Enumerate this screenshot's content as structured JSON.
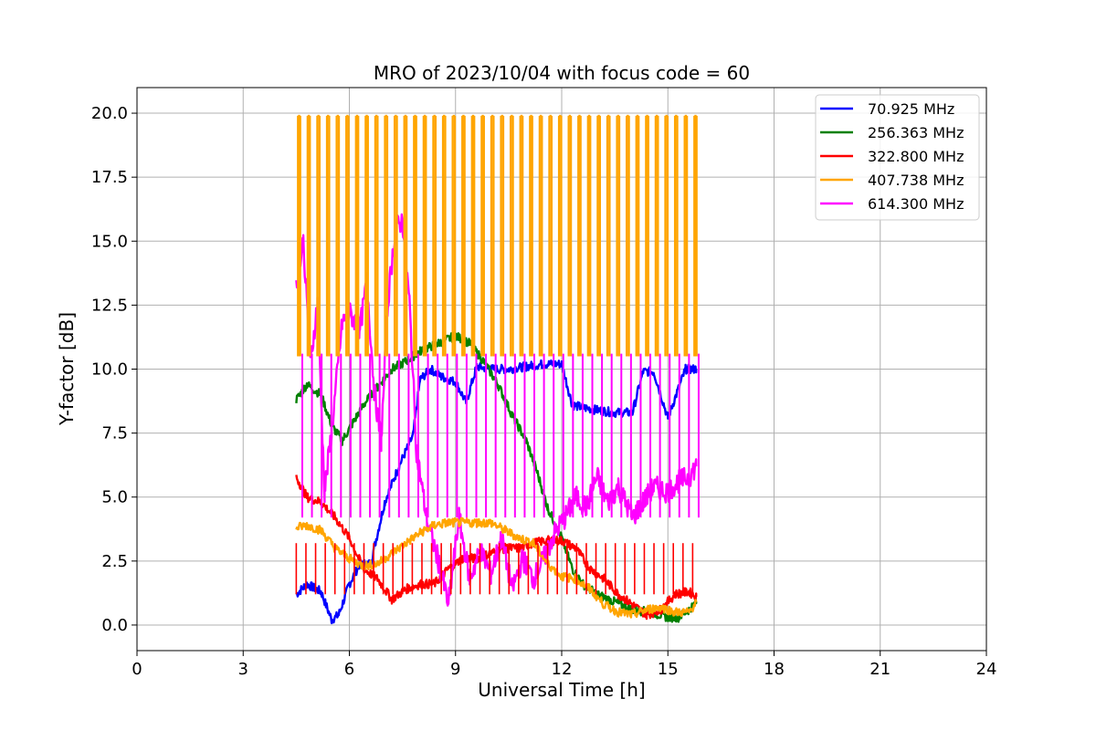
{
  "chart_data": {
    "type": "line",
    "title": "MRO of 2023/10/04 with focus code = 60",
    "xlabel": "Universal Time [h]",
    "ylabel": "Y-factor [dB]",
    "xlim": [
      0,
      24
    ],
    "ylim": [
      -1,
      21
    ],
    "x_ticks": [
      0,
      3,
      6,
      9,
      12,
      15,
      18,
      21,
      24
    ],
    "x_tick_labels": [
      "0",
      "3",
      "6",
      "9",
      "12",
      "15",
      "18",
      "21",
      "24"
    ],
    "y_ticks": [
      0,
      2.5,
      5,
      7.5,
      10,
      12.5,
      15,
      17.5,
      20
    ],
    "y_tick_labels": [
      "0.0",
      "2.5",
      "5.0",
      "7.5",
      "10.0",
      "12.5",
      "15.0",
      "17.5",
      "20.0"
    ],
    "grid": true,
    "legend_position": "top-right",
    "series": [
      {
        "name": "70.925 MHz",
        "color": "#0000ff",
        "x": [
          4.5,
          4.8,
          5.2,
          5.5,
          5.7,
          6.0,
          6.3,
          6.6,
          7.0,
          7.4,
          7.8,
          8.0,
          8.3,
          8.6,
          9.0,
          9.3,
          9.6,
          10.0,
          10.5,
          11.0,
          11.5,
          12.0,
          12.3,
          12.6,
          13.0,
          13.5,
          14.0,
          14.3,
          14.6,
          15.0,
          15.5,
          15.8
        ],
        "y": [
          1.2,
          1.6,
          1.3,
          0.2,
          0.4,
          1.6,
          2.4,
          2.4,
          4.8,
          6.2,
          7.4,
          9.6,
          10.0,
          9.7,
          9.5,
          8.7,
          10.1,
          10.0,
          10.0,
          10.1,
          10.2,
          10.2,
          8.6,
          8.5,
          8.4,
          8.3,
          8.3,
          9.9,
          9.9,
          8.1,
          10.0,
          10.0
        ]
      },
      {
        "name": "256.363 MHz",
        "color": "#008000",
        "x": [
          4.5,
          4.8,
          5.2,
          5.5,
          5.8,
          6.1,
          6.4,
          6.8,
          7.2,
          7.6,
          8.0,
          8.5,
          9.0,
          9.4,
          9.8,
          10.2,
          10.6,
          11.0,
          11.3,
          11.6,
          12.0,
          12.3,
          12.6,
          13.0,
          13.5,
          14.0,
          14.5,
          15.0,
          15.3,
          15.6,
          15.8
        ],
        "y": [
          8.8,
          9.4,
          9.0,
          7.8,
          7.2,
          7.9,
          8.6,
          9.3,
          10.0,
          10.3,
          10.7,
          11.0,
          11.3,
          11.0,
          10.3,
          9.4,
          8.2,
          7.2,
          6.0,
          4.6,
          3.4,
          2.2,
          1.6,
          1.2,
          0.9,
          0.6,
          0.5,
          0.3,
          0.3,
          0.6,
          0.9
        ]
      },
      {
        "name": "322.800 MHz",
        "color": "#ff0000",
        "x": [
          4.5,
          4.8,
          5.2,
          5.6,
          6.0,
          6.4,
          6.8,
          7.2,
          7.6,
          8.0,
          8.4,
          8.8,
          9.2,
          9.6,
          10.0,
          10.4,
          10.8,
          11.2,
          11.6,
          12.0,
          12.4,
          12.8,
          13.2,
          13.6,
          14.0,
          14.4,
          14.8,
          15.2,
          15.6,
          15.8
        ],
        "y": [
          5.8,
          5.0,
          4.8,
          4.2,
          3.4,
          2.2,
          1.8,
          1.0,
          1.4,
          1.6,
          1.6,
          2.2,
          2.6,
          2.6,
          2.8,
          3.0,
          3.0,
          3.2,
          3.3,
          3.3,
          3.0,
          2.2,
          1.8,
          1.2,
          0.8,
          0.4,
          0.6,
          1.2,
          1.3,
          1.1
        ]
      },
      {
        "name": "407.738 MHz",
        "color": "#ffa500",
        "x": [
          4.5,
          4.8,
          5.2,
          5.6,
          6.0,
          6.4,
          6.8,
          7.2,
          7.6,
          8.0,
          8.4,
          8.8,
          9.2,
          9.6,
          10.0,
          10.4,
          10.8,
          11.2,
          11.6,
          12.0,
          12.4,
          12.8,
          13.2,
          13.6,
          14.0,
          14.4,
          14.8,
          15.2,
          15.6,
          15.8
        ],
        "y": [
          3.8,
          3.9,
          3.7,
          3.0,
          2.6,
          2.3,
          2.4,
          2.8,
          3.2,
          3.6,
          3.9,
          4.0,
          4.0,
          4.0,
          4.0,
          3.7,
          3.4,
          3.2,
          2.4,
          1.9,
          1.8,
          1.4,
          0.8,
          0.5,
          0.4,
          0.6,
          0.7,
          0.5,
          0.5,
          0.9
        ],
        "spike_peak": 19.9,
        "spike_floor": 10.5,
        "spike_count": 42,
        "spike_x_range": [
          4.55,
          15.75
        ]
      },
      {
        "name": "614.300 MHz",
        "color": "#ff00ff",
        "x": [
          4.5,
          4.7,
          4.9,
          5.1,
          5.3,
          5.5,
          5.8,
          6.0,
          6.3,
          6.5,
          6.7,
          6.9,
          7.1,
          7.3,
          7.5,
          7.7,
          7.9,
          8.2,
          8.5,
          8.8,
          9.1,
          9.4,
          9.7,
          10.0,
          10.3,
          10.6,
          10.9,
          11.2,
          11.5,
          11.8,
          12.1,
          12.4,
          12.7,
          13.0,
          13.3,
          13.6,
          14.0,
          14.3,
          14.6,
          15.0,
          15.3,
          15.6,
          15.8
        ],
        "y": [
          13.2,
          15.0,
          10.2,
          12.6,
          5.2,
          7.6,
          11.8,
          12.2,
          11.6,
          13.4,
          9.2,
          7.2,
          12.8,
          15.5,
          15.8,
          12.6,
          6.8,
          4.0,
          2.6,
          0.8,
          4.2,
          1.8,
          2.9,
          2.0,
          3.4,
          1.4,
          2.6,
          1.8,
          2.6,
          3.6,
          4.2,
          5.0,
          4.6,
          5.8,
          4.8,
          5.4,
          4.2,
          4.8,
          5.4,
          5.2,
          5.6,
          5.8,
          6.2
        ]
      }
    ]
  }
}
